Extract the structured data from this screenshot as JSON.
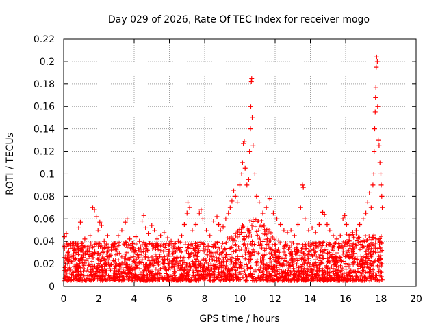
{
  "chart_data": {
    "type": "scatter",
    "title": "Day 029 of 2026, Rate Of TEC Index for receiver mogo",
    "xlabel": "GPS time / hours",
    "ylabel": "ROTI / TECUs",
    "xlim": [
      0,
      20
    ],
    "ylim": [
      0,
      0.22
    ],
    "grid": true,
    "marker": "plus",
    "colors": {
      "series": "#ff0000",
      "grid": "#a0a0a0",
      "axis": "#000000"
    },
    "x_ticks": [
      "0",
      "2",
      "4",
      "6",
      "8",
      "10",
      "12",
      "14",
      "16",
      "18",
      "20"
    ],
    "y_ticks": [
      "0",
      "0.02",
      "0.04",
      "0.06",
      "0.08",
      "0.1",
      "0.12",
      "0.14",
      "0.16",
      "0.18",
      "0.2",
      "0.22"
    ],
    "x_tick_values": [
      0,
      2,
      4,
      6,
      8,
      10,
      12,
      14,
      16,
      18,
      20
    ],
    "y_tick_values": [
      0,
      0.02,
      0.04,
      0.06,
      0.08,
      0.1,
      0.12,
      0.14,
      0.16,
      0.18,
      0.2,
      0.22
    ],
    "series": [
      {
        "name": "ROTI",
        "points": [
          [
            0.05,
            0.044
          ],
          [
            0.15,
            0.047
          ],
          [
            0.25,
            0.03
          ],
          [
            0.4,
            0.038
          ],
          [
            0.55,
            0.025
          ],
          [
            0.7,
            0.03
          ],
          [
            0.85,
            0.052
          ],
          [
            0.95,
            0.057
          ],
          [
            1.05,
            0.036
          ],
          [
            1.2,
            0.042
          ],
          [
            1.35,
            0.031
          ],
          [
            1.5,
            0.045
          ],
          [
            1.65,
            0.07
          ],
          [
            1.75,
            0.068
          ],
          [
            1.85,
            0.062
          ],
          [
            1.95,
            0.05
          ],
          [
            2.05,
            0.057
          ],
          [
            2.15,
            0.054
          ],
          [
            2.3,
            0.04
          ],
          [
            2.5,
            0.045
          ],
          [
            2.7,
            0.035
          ],
          [
            2.9,
            0.038
          ],
          [
            3.1,
            0.045
          ],
          [
            3.3,
            0.05
          ],
          [
            3.5,
            0.057
          ],
          [
            3.6,
            0.06
          ],
          [
            3.75,
            0.042
          ],
          [
            3.9,
            0.038
          ],
          [
            4.1,
            0.044
          ],
          [
            4.3,
            0.04
          ],
          [
            4.45,
            0.058
          ],
          [
            4.55,
            0.063
          ],
          [
            4.65,
            0.052
          ],
          [
            4.8,
            0.047
          ],
          [
            5.0,
            0.054
          ],
          [
            5.15,
            0.05
          ],
          [
            5.3,
            0.042
          ],
          [
            5.5,
            0.045
          ],
          [
            5.7,
            0.048
          ],
          [
            5.9,
            0.043
          ],
          [
            6.1,
            0.04
          ],
          [
            6.3,
            0.038
          ],
          [
            6.5,
            0.04
          ],
          [
            6.7,
            0.045
          ],
          [
            6.85,
            0.055
          ],
          [
            7.0,
            0.065
          ],
          [
            7.05,
            0.075
          ],
          [
            7.15,
            0.07
          ],
          [
            7.3,
            0.05
          ],
          [
            7.5,
            0.055
          ],
          [
            7.7,
            0.065
          ],
          [
            7.8,
            0.068
          ],
          [
            7.9,
            0.06
          ],
          [
            8.1,
            0.05
          ],
          [
            8.3,
            0.045
          ],
          [
            8.5,
            0.058
          ],
          [
            8.7,
            0.062
          ],
          [
            8.8,
            0.055
          ],
          [
            8.9,
            0.05
          ],
          [
            9.05,
            0.053
          ],
          [
            9.2,
            0.06
          ],
          [
            9.35,
            0.065
          ],
          [
            9.45,
            0.07
          ],
          [
            9.55,
            0.076
          ],
          [
            9.65,
            0.085
          ],
          [
            9.75,
            0.08
          ],
          [
            9.85,
            0.075
          ],
          [
            10.0,
            0.09
          ],
          [
            10.1,
            0.1
          ],
          [
            10.15,
            0.11
          ],
          [
            10.2,
            0.127
          ],
          [
            10.25,
            0.129
          ],
          [
            10.3,
            0.105
          ],
          [
            10.4,
            0.09
          ],
          [
            10.5,
            0.095
          ],
          [
            10.55,
            0.12
          ],
          [
            10.6,
            0.14
          ],
          [
            10.62,
            0.16
          ],
          [
            10.65,
            0.182
          ],
          [
            10.67,
            0.185
          ],
          [
            10.7,
            0.15
          ],
          [
            10.75,
            0.125
          ],
          [
            10.85,
            0.1
          ],
          [
            10.95,
            0.08
          ],
          [
            11.1,
            0.075
          ],
          [
            11.3,
            0.065
          ],
          [
            11.5,
            0.07
          ],
          [
            11.7,
            0.078
          ],
          [
            11.9,
            0.065
          ],
          [
            12.1,
            0.06
          ],
          [
            12.3,
            0.055
          ],
          [
            12.5,
            0.05
          ],
          [
            12.7,
            0.048
          ],
          [
            12.9,
            0.05
          ],
          [
            13.1,
            0.045
          ],
          [
            13.3,
            0.055
          ],
          [
            13.45,
            0.07
          ],
          [
            13.55,
            0.09
          ],
          [
            13.6,
            0.088
          ],
          [
            13.7,
            0.06
          ],
          [
            13.9,
            0.05
          ],
          [
            14.1,
            0.052
          ],
          [
            14.3,
            0.048
          ],
          [
            14.5,
            0.055
          ],
          [
            14.7,
            0.066
          ],
          [
            14.8,
            0.064
          ],
          [
            14.95,
            0.055
          ],
          [
            15.1,
            0.05
          ],
          [
            15.3,
            0.045
          ],
          [
            15.5,
            0.042
          ],
          [
            15.7,
            0.045
          ],
          [
            15.85,
            0.06
          ],
          [
            15.95,
            0.063
          ],
          [
            16.05,
            0.055
          ],
          [
            16.2,
            0.045
          ],
          [
            16.4,
            0.048
          ],
          [
            16.6,
            0.05
          ],
          [
            16.8,
            0.055
          ],
          [
            17.0,
            0.06
          ],
          [
            17.15,
            0.065
          ],
          [
            17.25,
            0.075
          ],
          [
            17.35,
            0.083
          ],
          [
            17.45,
            0.07
          ],
          [
            17.55,
            0.09
          ],
          [
            17.6,
            0.1
          ],
          [
            17.62,
            0.12
          ],
          [
            17.65,
            0.14
          ],
          [
            17.68,
            0.155
          ],
          [
            17.7,
            0.168
          ],
          [
            17.72,
            0.177
          ],
          [
            17.74,
            0.195
          ],
          [
            17.76,
            0.204
          ],
          [
            17.8,
            0.2
          ],
          [
            17.82,
            0.16
          ],
          [
            17.85,
            0.13
          ],
          [
            17.9,
            0.125
          ],
          [
            17.95,
            0.11
          ],
          [
            18.0,
            0.1
          ],
          [
            18.02,
            0.09
          ],
          [
            18.05,
            0.08
          ],
          [
            18.08,
            0.07
          ]
        ]
      }
    ]
  }
}
